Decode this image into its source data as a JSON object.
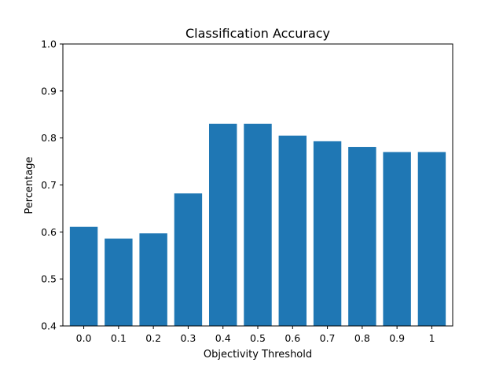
{
  "chart_data": {
    "type": "bar",
    "title": "Classification Accuracy",
    "xlabel": "Objectivity Threshold",
    "ylabel": "Percentage",
    "categories": [
      "0.0",
      "0.1",
      "0.2",
      "0.3",
      "0.4",
      "0.5",
      "0.6",
      "0.7",
      "0.8",
      "0.9",
      "1"
    ],
    "values": [
      0.611,
      0.586,
      0.597,
      0.682,
      0.83,
      0.83,
      0.805,
      0.793,
      0.781,
      0.77,
      0.77
    ],
    "ylim": [
      0.4,
      1.0
    ],
    "yticks": [
      "0.4",
      "0.5",
      "0.6",
      "0.7",
      "0.8",
      "0.9",
      "1.0"
    ],
    "bar_color": "#1f77b4",
    "grid": false,
    "legend": false
  }
}
